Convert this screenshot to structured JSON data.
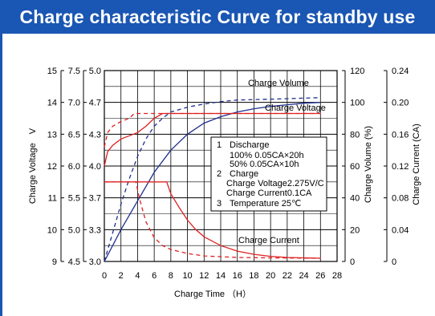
{
  "chart_data": {
    "type": "line",
    "title": "Charge characteristic Curve for standby use",
    "xlabel": "Charge Time （H）",
    "x_ticks": [
      "0",
      "2",
      "4",
      "6",
      "8",
      "10",
      "12",
      "14",
      "16",
      "18",
      "20",
      "22",
      "24",
      "26",
      "28"
    ],
    "xlim": [
      0,
      28
    ],
    "left_axes": [
      {
        "label": "Charge Voltage　V",
        "ticks": [
          "15",
          "14",
          "13",
          "12",
          "11",
          "10",
          "9"
        ],
        "range": [
          9,
          15
        ]
      },
      {
        "label": "",
        "ticks": [
          "7.5",
          "7.0",
          "6.5",
          "6.0",
          "5.5",
          "5.0",
          "4.5"
        ],
        "range": [
          4.5,
          7.5
        ]
      },
      {
        "label": "",
        "ticks": [
          "5.0",
          "4.7",
          "4.3",
          "4.0",
          "3.7",
          "3.3",
          "3.0"
        ],
        "range": [
          3.0,
          5.0
        ]
      }
    ],
    "right_axes": [
      {
        "label": "Charge Volume (%)",
        "ticks": [
          "120",
          "100",
          "80",
          "60",
          "40",
          "20",
          "0"
        ],
        "range": [
          0,
          120
        ]
      },
      {
        "label": "Charge Current (CA)",
        "ticks": [
          "0.24",
          "0.20",
          "0.16",
          "0.12",
          "0.08",
          "0.04",
          "0"
        ],
        "range": [
          0,
          0.24
        ]
      }
    ],
    "curve_labels": {
      "charge_volume": "Charge Volume",
      "charge_voltage": "Charge Voltage",
      "charge_current": "Charge Current"
    },
    "series": [
      {
        "key": "volume_100",
        "axis": "volume",
        "color": "#1f2f8f",
        "dash": false,
        "points": [
          [
            0,
            0
          ],
          [
            1,
            10
          ],
          [
            2,
            20
          ],
          [
            4,
            38
          ],
          [
            6,
            56
          ],
          [
            8,
            70
          ],
          [
            10,
            80
          ],
          [
            12,
            87
          ],
          [
            14,
            91
          ],
          [
            16,
            94
          ],
          [
            18,
            96
          ],
          [
            20,
            97.5
          ],
          [
            22,
            98.5
          ],
          [
            24,
            99.5
          ],
          [
            26,
            100
          ]
        ]
      },
      {
        "key": "volume_50",
        "axis": "volume",
        "color": "#1f2f8f",
        "dash": true,
        "points": [
          [
            0,
            0
          ],
          [
            1,
            18
          ],
          [
            2,
            36
          ],
          [
            3,
            52
          ],
          [
            4,
            66
          ],
          [
            5,
            77
          ],
          [
            6,
            85
          ],
          [
            7,
            90
          ],
          [
            8,
            94
          ],
          [
            10,
            97
          ],
          [
            12,
            99
          ],
          [
            14,
            100.5
          ],
          [
            16,
            101.5
          ],
          [
            20,
            102
          ],
          [
            26,
            103
          ]
        ]
      },
      {
        "key": "voltage_100",
        "axis": "voltage",
        "color": "#e02020",
        "dash": false,
        "points": [
          [
            0,
            12.0
          ],
          [
            0.4,
            12.45
          ],
          [
            1,
            12.65
          ],
          [
            2,
            12.85
          ],
          [
            3,
            12.95
          ],
          [
            4,
            13.05
          ],
          [
            5,
            13.25
          ],
          [
            6,
            13.5
          ],
          [
            7,
            13.65
          ],
          [
            7.5,
            13.65
          ],
          [
            26,
            13.65
          ]
        ]
      },
      {
        "key": "voltage_50",
        "axis": "voltage",
        "color": "#e02020",
        "dash": true,
        "points": [
          [
            0,
            12.6
          ],
          [
            0.4,
            13.05
          ],
          [
            1,
            13.25
          ],
          [
            2,
            13.4
          ],
          [
            3,
            13.5
          ],
          [
            3.6,
            13.65
          ],
          [
            4,
            13.65
          ],
          [
            26,
            13.65
          ]
        ]
      },
      {
        "key": "current_100",
        "axis": "current",
        "color": "#e02020",
        "dash": false,
        "points": [
          [
            0,
            0.1
          ],
          [
            7.5,
            0.1
          ],
          [
            8,
            0.085
          ],
          [
            9,
            0.068
          ],
          [
            10,
            0.052
          ],
          [
            11,
            0.04
          ],
          [
            12,
            0.031
          ],
          [
            14,
            0.02
          ],
          [
            16,
            0.013
          ],
          [
            18,
            0.009
          ],
          [
            20,
            0.0065
          ],
          [
            22,
            0.005
          ],
          [
            24,
            0.0045
          ],
          [
            26,
            0.004
          ]
        ]
      },
      {
        "key": "current_50",
        "axis": "current",
        "color": "#e02020",
        "dash": true,
        "points": [
          [
            0,
            0.1
          ],
          [
            3.8,
            0.1
          ],
          [
            4.2,
            0.08
          ],
          [
            5,
            0.05
          ],
          [
            6,
            0.03
          ],
          [
            7,
            0.02
          ],
          [
            8,
            0.015
          ],
          [
            10,
            0.01
          ],
          [
            12,
            0.007
          ],
          [
            16,
            0.005
          ],
          [
            20,
            0.0045
          ],
          [
            26,
            0.004
          ]
        ]
      }
    ],
    "notes": {
      "n1": "1",
      "discharge": "Discharge",
      "d100": "100%   0.05CA×20h",
      "d50": "50%   0.05CA×10h",
      "n2": "2",
      "charge": "Charge",
      "cv": "Charge Voltage2.275V/C",
      "cc": "Charge Current0.1CA",
      "n3": "3",
      "temp": "Temperature 25℃"
    },
    "grid": true
  }
}
